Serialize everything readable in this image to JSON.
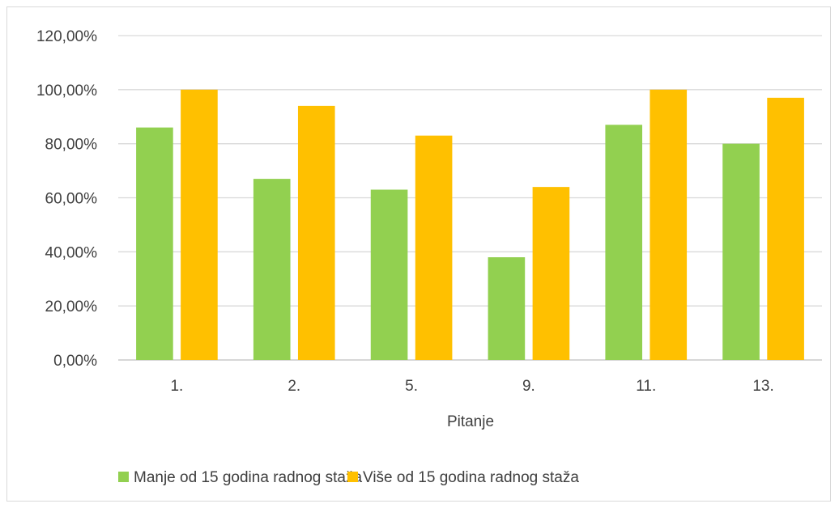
{
  "chart_data": {
    "type": "bar",
    "categories": [
      "1.",
      "2.",
      "5.",
      "9.",
      "11.",
      "13."
    ],
    "series": [
      {
        "name": "Manje od 15 godina radnog staža",
        "values": [
          86,
          67,
          63,
          38,
          87,
          80
        ],
        "color": "#92d050"
      },
      {
        "name": "Više od 15 godina radnog staža",
        "values": [
          100,
          94,
          83,
          64,
          100,
          97
        ],
        "color": "#ffc000"
      }
    ],
    "title": "",
    "xlabel": "Pitanje",
    "ylabel": "",
    "ylim": [
      0,
      120
    ],
    "yticks": [
      "0,00%",
      "20,00%",
      "40,00%",
      "60,00%",
      "80,00%",
      "100,00%",
      "120,00%"
    ],
    "grid": true,
    "legend_position": "bottom"
  }
}
